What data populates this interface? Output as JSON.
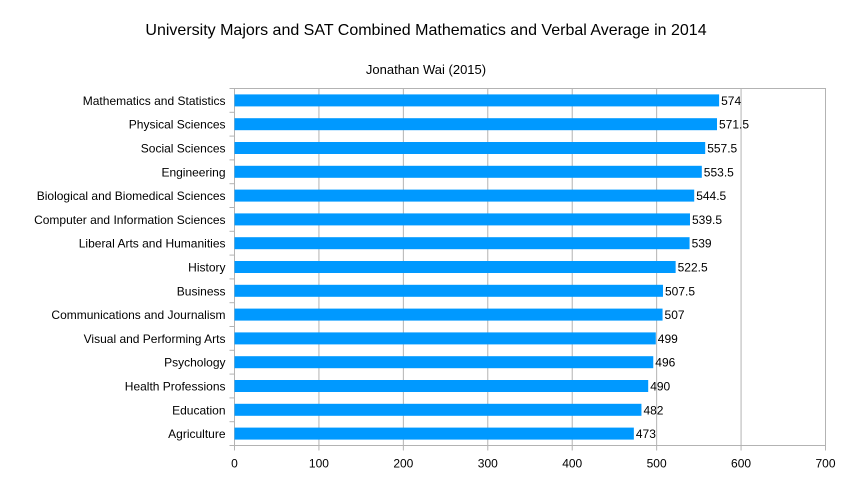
{
  "chart_data": {
    "type": "bar",
    "orientation": "horizontal",
    "title": "University Majors and SAT Combined Mathematics and Verbal Average in 2014",
    "subtitle": "Jonathan Wai (2015)",
    "xlabel": "",
    "ylabel": "",
    "xlim": [
      0,
      700
    ],
    "x_ticks": [
      "0",
      "100",
      "200",
      "300",
      "400",
      "500",
      "600",
      "700"
    ],
    "grid": true,
    "legend": "none",
    "bar_color": "#0099ff",
    "categories": [
      "Mathematics and Statistics",
      "Physical Sciences",
      "Social Sciences",
      "Engineering",
      "Biological and Biomedical Sciences",
      "Computer and Information Sciences",
      "Liberal Arts and Humanities",
      "History",
      "Business",
      "Communications and Journalism",
      "Visual and Performing Arts",
      "Psychology",
      "Health Professions",
      "Education",
      "Agriculture"
    ],
    "values": [
      574,
      571.5,
      557.5,
      553.5,
      544.5,
      539.5,
      539,
      522.5,
      507.5,
      507,
      499,
      496,
      490,
      482,
      473
    ],
    "data_labels": [
      "574",
      "571.5",
      "557.5",
      "553.5",
      "544.5",
      "539.5",
      "539",
      "522.5",
      "507.5",
      "507",
      "499",
      "496",
      "490",
      "482",
      "473"
    ]
  }
}
